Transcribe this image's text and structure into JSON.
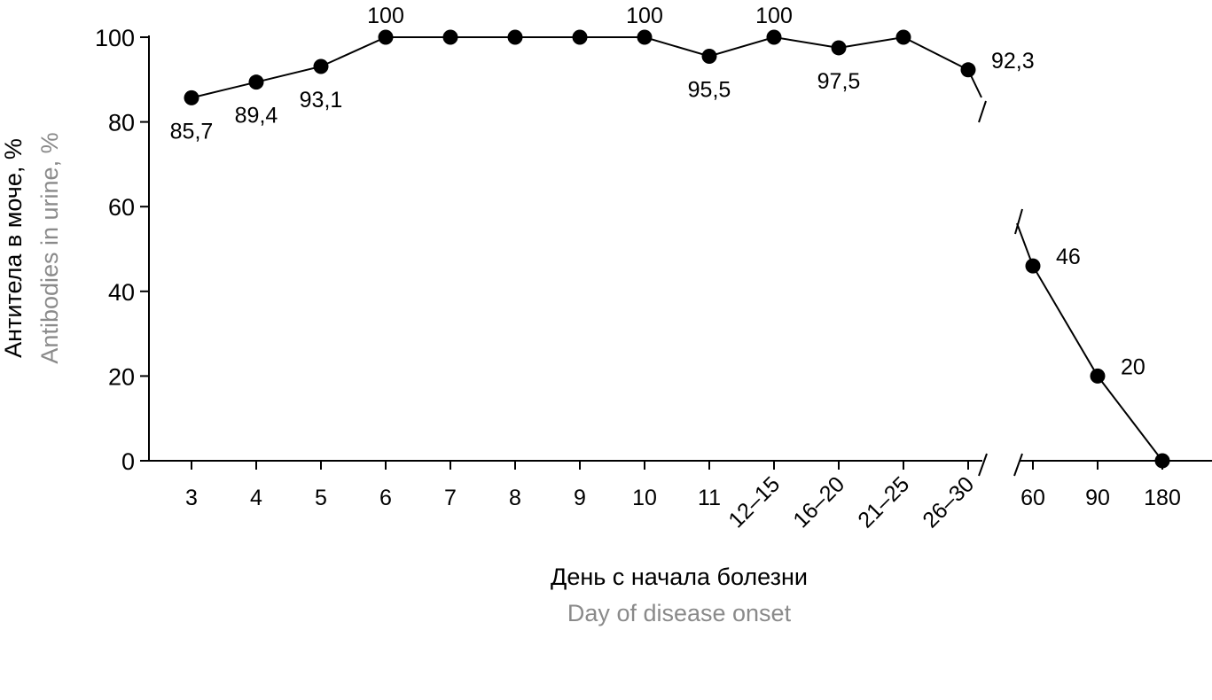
{
  "chart_data": {
    "type": "line",
    "title": "",
    "ylabel": "Антитела в моче, %",
    "ylabel_en": "Antibodies in urine, %",
    "xlabel": "День с начала болезни",
    "xlabel_en": "Day of disease onset",
    "ylim": [
      0,
      100
    ],
    "yticks": [
      0,
      20,
      40,
      60,
      80,
      100
    ],
    "categories": [
      "3",
      "4",
      "5",
      "6",
      "7",
      "8",
      "9",
      "10",
      "11",
      "12–15",
      "16–20",
      "21–25",
      "26–30",
      "60",
      "90",
      "180"
    ],
    "values": [
      85.7,
      89.4,
      93.1,
      100,
      100,
      100,
      100,
      100,
      95.5,
      100,
      97.5,
      100,
      92.3,
      46,
      20,
      0
    ],
    "data_labels": [
      "85,7",
      "89,4",
      "93,1",
      "100",
      "",
      "",
      "",
      "100",
      "95,5",
      "100",
      "97,5",
      "",
      "92,3",
      "46",
      "20",
      ""
    ],
    "axis_break_after_category": "26–30",
    "grid": false,
    "colors": {
      "line": "#000000",
      "secondary_text": "#8a8a8a"
    }
  }
}
